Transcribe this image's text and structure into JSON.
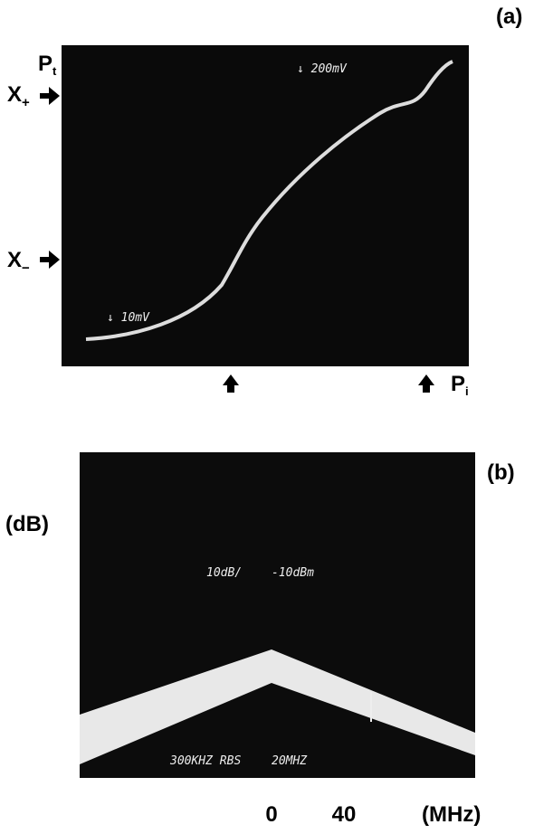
{
  "panel_a": {
    "label": "(a)",
    "y_top": {
      "main": "P",
      "sub": "t"
    },
    "x_plus": {
      "main": "X",
      "sub": "+"
    },
    "x_minus": {
      "main": "X",
      "sub": "−"
    },
    "scale_high": "↓ 200mV",
    "scale_low": "↓ 10mV",
    "x_axis": {
      "main": "P",
      "sub": "i"
    }
  },
  "panel_b": {
    "label": "(b)",
    "y_unit": "(dB)",
    "scale": "10dB/",
    "reference": "-10dBm",
    "settings_left": "300KHZ RBS",
    "settings_right": "20MHZ",
    "x_ticks": [
      "0",
      "40"
    ],
    "x_unit": "(MHz)"
  }
}
